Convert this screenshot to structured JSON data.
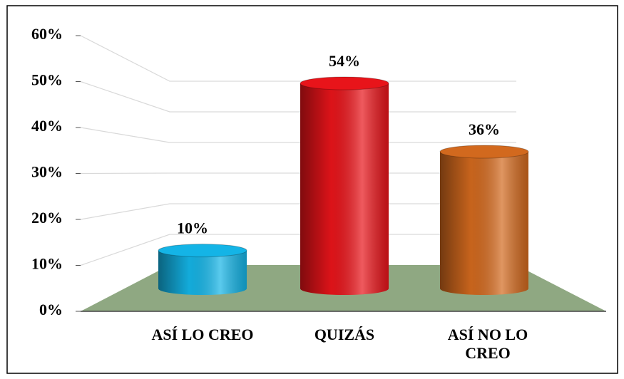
{
  "chart_data": {
    "type": "bar3d",
    "categories": [
      "ASÍ LO CREO",
      "QUIZÁS",
      "ASÍ NO LO CREO"
    ],
    "values": [
      10,
      54,
      36
    ],
    "value_labels": [
      "10%",
      "54%",
      "36%"
    ],
    "colors": [
      "#14b4e6",
      "#e8141a",
      "#d2691e"
    ],
    "ylim": [
      0,
      60
    ],
    "yticks": [
      {
        "value": 0,
        "label": "0%"
      },
      {
        "value": 10,
        "label": "10%"
      },
      {
        "value": 20,
        "label": "20%"
      },
      {
        "value": 30,
        "label": "30%"
      },
      {
        "value": 40,
        "label": "40%"
      },
      {
        "value": 50,
        "label": "50%"
      },
      {
        "value": 60,
        "label": "60%"
      }
    ],
    "grid": true
  }
}
